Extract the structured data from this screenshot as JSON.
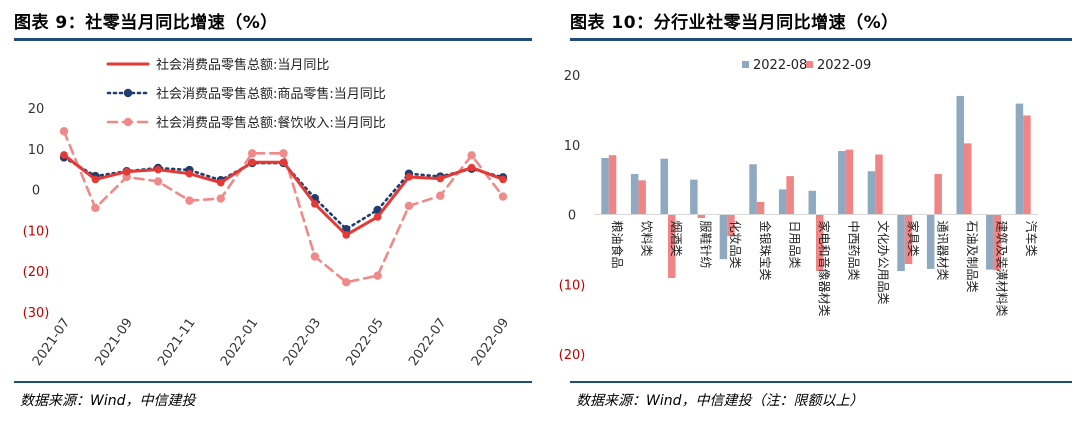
{
  "left": {
    "title": "图表 9：社零当月同比增速（%）",
    "source": "数据来源：Wind，中信建投"
  },
  "right": {
    "title": "图表 10：分行业社零当月同比增速（%）",
    "source": "数据来源：Wind，中信建投（注：限额以上）"
  },
  "colors": {
    "rule": "#1f4e79",
    "total": "#e53935",
    "goods": "#1f3e6e",
    "catering": "#f08a8a",
    "aug": "#8fa9c0",
    "sep": "#f08585",
    "neg_tick": "#c00000"
  },
  "chart_data": [
    {
      "type": "line",
      "title": "社零当月同比增速（%）",
      "x": [
        "2021-07",
        "2021-08",
        "2021-09",
        "2021-10",
        "2021-11",
        "2021-12",
        "2022-01",
        "2022-02",
        "2022-03",
        "2022-04",
        "2022-05",
        "2022-06",
        "2022-07",
        "2022-08",
        "2022-09"
      ],
      "x_tick_labels": [
        "2021-07",
        "2021-09",
        "2021-11",
        "2022-01",
        "2022-03",
        "2022-05",
        "2022-07",
        "2022-09"
      ],
      "x_tick_index": [
        0,
        2,
        4,
        6,
        8,
        10,
        12,
        14
      ],
      "y_ticks": [
        20,
        10,
        0,
        -10,
        -20,
        -30
      ],
      "y_tick_labels": [
        "20",
        "10",
        "0",
        "(10)",
        "(20)",
        "(30)"
      ],
      "ylim": [
        -30,
        20
      ],
      "series": [
        {
          "name": "社会消费品零售总额:当月同比",
          "style": "solid",
          "values": [
            8.5,
            2.5,
            4.4,
            4.9,
            3.9,
            1.7,
            6.7,
            6.7,
            -3.5,
            -11.1,
            -6.7,
            3.1,
            2.7,
            5.4,
            2.5
          ]
        },
        {
          "name": "社会消费品零售总额:商品零售:当月同比",
          "style": "dotted",
          "values": [
            7.9,
            3.3,
            4.5,
            5.3,
            4.8,
            2.3,
            6.5,
            6.5,
            -2.1,
            -9.7,
            -5.0,
            3.9,
            3.2,
            5.1,
            3.0
          ]
        },
        {
          "name": "社会消费品零售总额:餐饮收入:当月同比",
          "style": "dashed",
          "values": [
            14.3,
            -4.5,
            3.1,
            2.0,
            -2.7,
            -2.2,
            8.9,
            8.9,
            -16.4,
            -22.7,
            -21.1,
            -4.0,
            -1.5,
            8.4,
            -1.7
          ]
        }
      ]
    },
    {
      "type": "bar",
      "title": "分行业社零当月同比增速（%）",
      "categories": [
        "粮油食品",
        "饮料类",
        "烟酒类",
        "服鞋针纺",
        "化妆品类",
        "金银珠宝类",
        "日用品类",
        "家电和音像器材类",
        "中西药品类",
        "文化办公用品类",
        "家具类",
        "通讯器材类",
        "石油及制品类",
        "建筑及装潢材料类",
        "汽车类"
      ],
      "y_ticks": [
        20,
        10,
        0,
        -10,
        -20
      ],
      "y_tick_labels": [
        "20",
        "10",
        "0",
        "(10)",
        "(20)"
      ],
      "ylim": [
        -20,
        20
      ],
      "series": [
        {
          "name": "2022-08",
          "values": [
            8.1,
            5.8,
            8.0,
            5.0,
            -6.4,
            7.2,
            3.6,
            3.4,
            9.1,
            6.2,
            -8.1,
            -7.8,
            17.0,
            -7.9,
            15.9
          ]
        },
        {
          "name": "2022-09",
          "values": [
            8.5,
            4.9,
            -9.1,
            -0.5,
            -3.1,
            1.8,
            5.5,
            -8.1,
            9.3,
            8.6,
            -7.1,
            5.8,
            10.2,
            -8.0,
            14.2
          ]
        }
      ]
    }
  ]
}
